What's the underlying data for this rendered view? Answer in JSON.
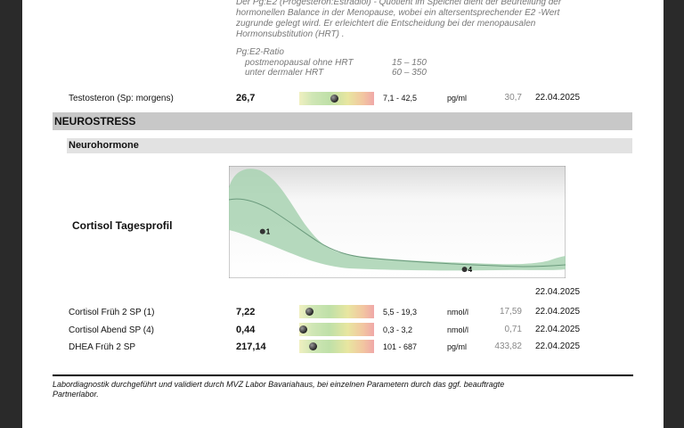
{
  "intro_note": {
    "line1": "Der Pg:E2 (Progesteron:Estradiol) - Quotient im Speichel dient der Beurteilung der",
    "line2": "hormonellen Balance in der Menopause, wobei ein altersentsprechender E2 -Wert",
    "line3": "zugrunde gelegt wird. Er erleichtert die Entscheidung bei der menopausalen",
    "line4": "Hormonsubstitution (HRT) ."
  },
  "ratio": {
    "heading": "Pg:E2-Ratio",
    "rows": [
      {
        "label": "postmenopausal ohne HRT",
        "range": "15 – 150"
      },
      {
        "label": "unter dermaler HRT",
        "range": "60 – 350"
      }
    ]
  },
  "testosterone": {
    "label": "Testosteron (Sp: morgens)",
    "value": "26,7",
    "range": "7,1 - 42,5",
    "unit": "pg/ml",
    "previous": "30,7",
    "date": "22.04.2025",
    "marker_fraction": 0.46
  },
  "section": {
    "title": "NEUROSTRESS"
  },
  "subsection": {
    "title": "Neurohormone"
  },
  "cortisol_chart": {
    "title": "Cortisol Tagesprofil",
    "date": "22.04.2025"
  },
  "chart_data": {
    "type": "area",
    "title": "Cortisol Tagesprofil",
    "points": [
      {
        "label": "1",
        "position": 0.1,
        "level": 0.41
      },
      {
        "label": "4",
        "position": 0.7,
        "level": 0.05
      }
    ]
  },
  "results": [
    {
      "label": "Cortisol Früh 2 SP (1)",
      "value": "7,22",
      "range": "5,5 - 19,3",
      "unit": "nmol/l",
      "previous": "17,59",
      "date": "22.04.2025",
      "marker_fraction": 0.13
    },
    {
      "label": "Cortisol Abend SP (4)",
      "value": "0,44",
      "range": "0,3 - 3,2",
      "unit": "nmol/l",
      "previous": "0,71",
      "date": "22.04.2025",
      "marker_fraction": 0.05
    },
    {
      "label": "DHEA Früh 2 SP",
      "value": "217,14",
      "range": "101 - 687",
      "unit": "pg/ml",
      "previous": "433,82",
      "date": "22.04.2025",
      "marker_fraction": 0.18
    }
  ],
  "footer": {
    "line1": "Labordiagnostik durchgeführt und validiert durch MVZ Labor Bavariahaus, bei einzelnen Parametern durch das ggf.  beauftragte",
    "line2": "Partnerlabor."
  }
}
